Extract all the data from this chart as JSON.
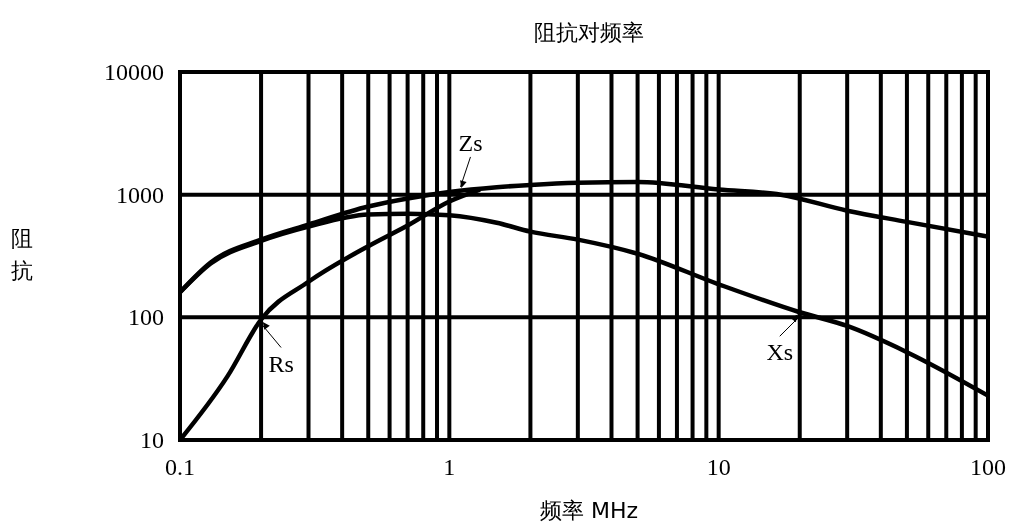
{
  "chart_data": {
    "type": "line",
    "title": "阻抗对频率",
    "xlabel": "频率  MHz",
    "ylabel": "阻抗",
    "log": "xy",
    "grid": true,
    "legend": "bottom",
    "line_style": "solid",
    "xlim": [
      0.1,
      100
    ],
    "ylim": [
      10,
      10000
    ],
    "xticks": [
      0.1,
      {
        "value": 0.2,
        "label": null
      },
      {
        "value": 0.3,
        "label": null
      },
      {
        "value": 0.4,
        "label": null
      },
      {
        "value": 0.5,
        "label": null
      },
      {
        "value": 0.6,
        "label": null
      },
      {
        "value": 0.7,
        "label": null
      },
      {
        "value": 0.8,
        "label": null
      },
      {
        "value": 0.9,
        "label": null
      },
      1,
      {
        "value": 2,
        "label": null
      },
      {
        "value": 3,
        "label": null
      },
      {
        "value": 4,
        "label": null
      },
      {
        "value": 5,
        "label": null
      },
      {
        "value": 6,
        "label": null
      },
      {
        "value": 7,
        "label": null
      },
      {
        "value": 8,
        "label": null
      },
      {
        "value": 9,
        "label": null
      },
      10,
      {
        "value": 20,
        "label": null
      },
      {
        "value": 30,
        "label": null
      },
      {
        "value": 40,
        "label": null
      },
      {
        "value": 50,
        "label": null
      },
      {
        "value": 60,
        "label": null
      },
      {
        "value": 70,
        "label": null
      },
      {
        "value": 80,
        "label": null
      },
      {
        "value": 90,
        "label": null
      },
      100
    ],
    "yticks": [
      10,
      100,
      1000,
      10000
    ],
    "series": [
      {
        "name": "Zs",
        "color": "#000000",
        "x": [
          0.1,
          0.13,
          0.2,
          0.3,
          0.5,
          0.7,
          1,
          1.5,
          2,
          3,
          5,
          10,
          17,
          30,
          50,
          100
        ],
        "values": [
          160,
          280,
          430,
          570,
          800,
          930,
          1050,
          1150,
          1200,
          1250,
          1270,
          1100,
          1000,
          740,
          600,
          455
        ]
      },
      {
        "name": "Rs",
        "color": "#000000",
        "x": [
          0.1,
          0.15,
          0.2,
          0.3,
          0.5,
          0.7,
          1,
          1.3
        ],
        "values": [
          10,
          33,
          96,
          195,
          380,
          560,
          880,
          1100
        ]
      },
      {
        "name": "Xs",
        "color": "#000000",
        "x": [
          0.1,
          0.13,
          0.2,
          0.3,
          0.5,
          0.7,
          1,
          1.5,
          2,
          3,
          5,
          10,
          20,
          30,
          50,
          100
        ],
        "values": [
          160,
          275,
          420,
          550,
          690,
          700,
          680,
          590,
          500,
          430,
          330,
          186,
          110,
          85,
          52,
          23
        ]
      }
    ]
  }
}
